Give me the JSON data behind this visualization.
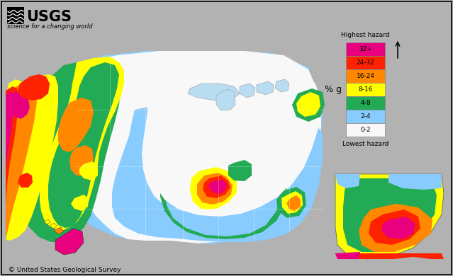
{
  "background_color": "#b2b2b2",
  "border_color": "#000000",
  "legend_labels": [
    "32+",
    "24-32",
    "16-24",
    "8-16",
    "4-8",
    "2-4",
    "0-2"
  ],
  "legend_colors": [
    "#e8007f",
    "#ff2200",
    "#ff8800",
    "#ffff00",
    "#22aa55",
    "#88ccff",
    "#f8f8f8"
  ],
  "legend_title_top": "Highest hazard",
  "legend_title_bottom": "Lowest hazard",
  "legend_unit": "% g",
  "copyright_text": "© United States Geological Survey",
  "fig_width": 6.39,
  "fig_height": 3.9
}
